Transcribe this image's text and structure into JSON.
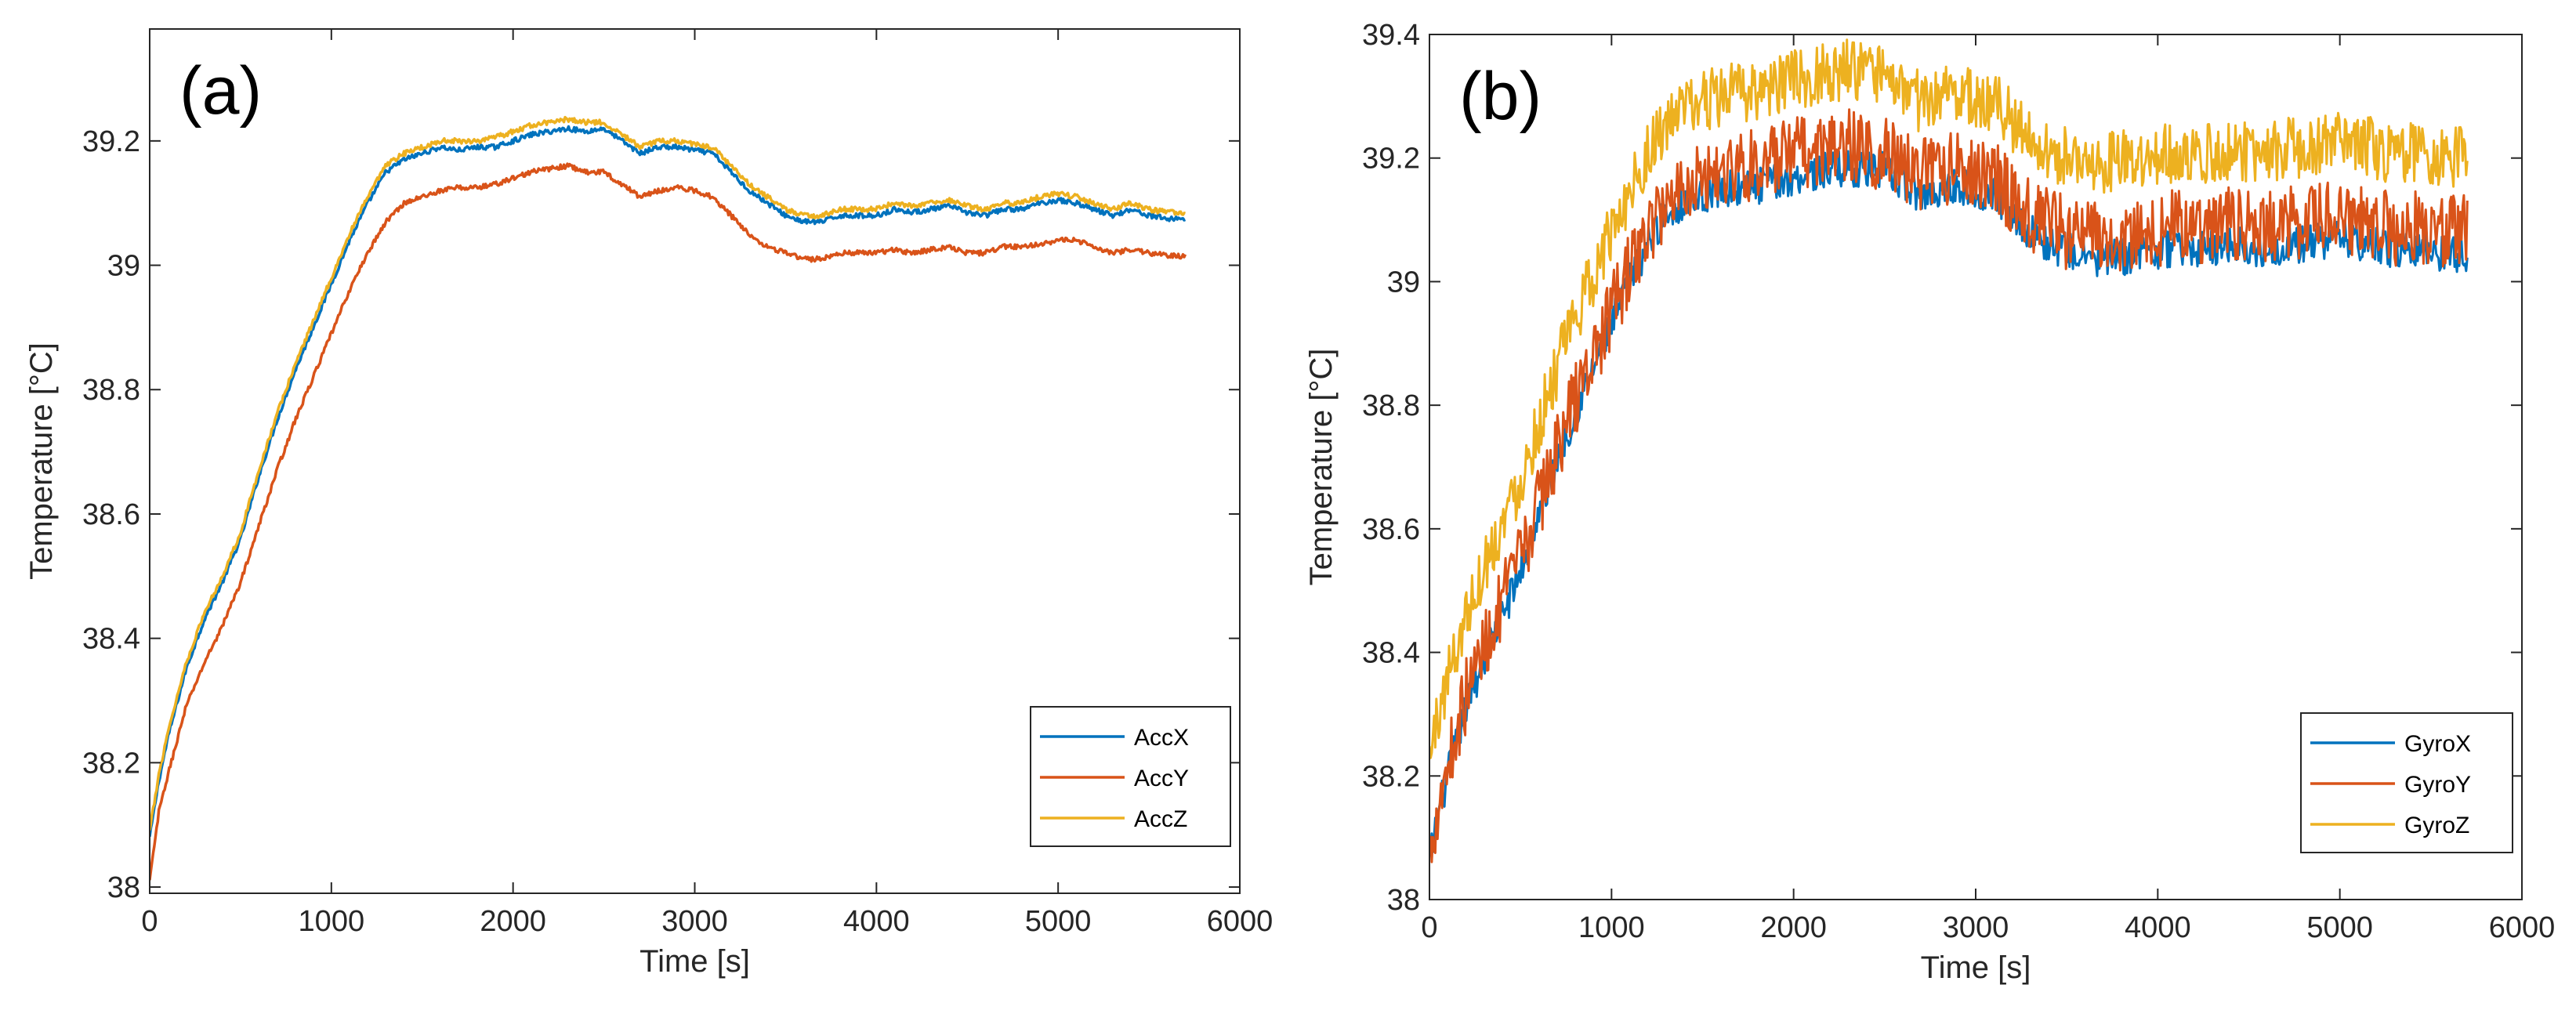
{
  "chart_data": [
    {
      "type": "line",
      "panel_label": "(a)",
      "xlabel": "Time [s]",
      "ylabel": "Temperature [°C]",
      "xlim": [
        0,
        6000
      ],
      "ylim": [
        37.99,
        39.38
      ],
      "xticks": [
        0,
        1000,
        2000,
        3000,
        4000,
        5000,
        6000
      ],
      "yticks": [
        38,
        38.2,
        38.4,
        38.6,
        38.8,
        39,
        39.2
      ],
      "ytick_labels": [
        "38",
        "38.2",
        "38.4",
        "38.6",
        "38.8",
        "39",
        "39.2"
      ],
      "legend_position": "bottom-right",
      "grid": false,
      "series": [
        {
          "name": "AccX",
          "color": "#0072BD",
          "noise": 0.004,
          "x": [
            0,
            50,
            100,
            200,
            300,
            400,
            500,
            600,
            700,
            800,
            900,
            1000,
            1100,
            1200,
            1300,
            1400,
            1500,
            1600,
            1700,
            1800,
            1900,
            2000,
            2100,
            2200,
            2300,
            2400,
            2500,
            2600,
            2700,
            2800,
            2900,
            3000,
            3100,
            3200,
            3300,
            3400,
            3500,
            3600,
            3700,
            3800,
            3900,
            4000,
            4100,
            4200,
            4300,
            4400,
            4500,
            4600,
            4700,
            4800,
            4900,
            5000,
            5100,
            5200,
            5300,
            5400,
            5500,
            5600,
            5700
          ],
          "y": [
            38.08,
            38.17,
            38.24,
            38.35,
            38.43,
            38.49,
            38.56,
            38.66,
            38.75,
            38.83,
            38.9,
            38.97,
            39.04,
            39.1,
            39.15,
            39.17,
            39.18,
            39.19,
            39.185,
            39.19,
            39.19,
            39.2,
            39.21,
            39.215,
            39.22,
            39.215,
            39.22,
            39.2,
            39.18,
            39.19,
            39.19,
            39.185,
            39.18,
            39.15,
            39.12,
            39.1,
            39.08,
            39.07,
            39.07,
            39.08,
            39.08,
            39.08,
            39.09,
            39.085,
            39.09,
            39.095,
            39.085,
            39.08,
            39.09,
            39.09,
            39.1,
            39.105,
            39.1,
            39.09,
            39.08,
            39.09,
            39.08,
            39.075,
            39.075
          ]
        },
        {
          "name": "AccY",
          "color": "#D95319",
          "noise": 0.004,
          "x": [
            0,
            50,
            100,
            200,
            300,
            400,
            500,
            600,
            700,
            800,
            900,
            1000,
            1100,
            1200,
            1300,
            1400,
            1500,
            1600,
            1700,
            1800,
            1900,
            2000,
            2100,
            2200,
            2300,
            2400,
            2500,
            2600,
            2700,
            2800,
            2900,
            3000,
            3100,
            3200,
            3300,
            3400,
            3500,
            3600,
            3700,
            3800,
            3900,
            4000,
            4100,
            4200,
            4300,
            4400,
            4500,
            4600,
            4700,
            4800,
            4900,
            5000,
            5100,
            5200,
            5300,
            5400,
            5500,
            5600,
            5700
          ],
          "y": [
            38.01,
            38.12,
            38.18,
            38.29,
            38.36,
            38.42,
            38.49,
            38.58,
            38.67,
            38.75,
            38.82,
            38.89,
            38.96,
            39.02,
            39.07,
            39.1,
            39.11,
            39.12,
            39.125,
            39.125,
            39.13,
            39.14,
            39.15,
            39.155,
            39.16,
            39.15,
            39.15,
            39.13,
            39.11,
            39.12,
            39.125,
            39.12,
            39.11,
            39.08,
            39.05,
            39.03,
            39.02,
            39.01,
            39.01,
            39.02,
            39.02,
            39.02,
            39.025,
            39.02,
            39.025,
            39.03,
            39.02,
            39.02,
            39.03,
            39.03,
            39.035,
            39.04,
            39.04,
            39.03,
            39.02,
            39.025,
            39.02,
            39.015,
            39.015
          ]
        },
        {
          "name": "AccZ",
          "color": "#EDB120",
          "noise": 0.004,
          "x": [
            0,
            50,
            100,
            200,
            300,
            400,
            500,
            600,
            700,
            800,
            900,
            1000,
            1100,
            1200,
            1300,
            1400,
            1500,
            1600,
            1700,
            1800,
            1900,
            2000,
            2100,
            2200,
            2300,
            2400,
            2500,
            2600,
            2700,
            2800,
            2900,
            3000,
            3100,
            3200,
            3300,
            3400,
            3500,
            3600,
            3700,
            3800,
            3900,
            4000,
            4100,
            4200,
            4300,
            4400,
            4500,
            4600,
            4700,
            4800,
            4900,
            5000,
            5100,
            5200,
            5300,
            5400,
            5500,
            5600,
            5700
          ],
          "y": [
            38.09,
            38.18,
            38.25,
            38.36,
            38.44,
            38.5,
            38.57,
            38.67,
            38.76,
            38.84,
            38.91,
            38.98,
            39.05,
            39.11,
            39.16,
            39.18,
            39.19,
            39.2,
            39.2,
            39.2,
            39.205,
            39.215,
            39.225,
            39.23,
            39.235,
            39.23,
            39.23,
            39.21,
            39.19,
            39.2,
            39.2,
            39.195,
            39.19,
            39.16,
            39.13,
            39.11,
            39.09,
            39.08,
            39.08,
            39.09,
            39.09,
            39.09,
            39.1,
            39.095,
            39.1,
            39.105,
            39.095,
            39.09,
            39.1,
            39.1,
            39.11,
            39.115,
            39.11,
            39.1,
            39.09,
            39.1,
            39.09,
            39.085,
            39.085
          ]
        }
      ]
    },
    {
      "type": "line",
      "panel_label": "(b)",
      "xlabel": "Time [s]",
      "ylabel": "Temperature [°C]",
      "xlim": [
        0,
        6000
      ],
      "ylim": [
        38,
        39.4
      ],
      "xticks": [
        0,
        1000,
        2000,
        3000,
        4000,
        5000,
        6000
      ],
      "yticks": [
        38,
        38.2,
        38.4,
        38.6,
        38.8,
        39,
        39.2,
        39.4
      ],
      "ytick_labels": [
        "38",
        "38.2",
        "38.4",
        "38.6",
        "38.8",
        "39",
        "39.2",
        "39.4"
      ],
      "legend_position": "bottom-right",
      "grid": false,
      "series": [
        {
          "name": "GyroX",
          "color": "#0072BD",
          "noise": 0.03,
          "x": [
            0,
            50,
            100,
            200,
            300,
            400,
            500,
            600,
            700,
            800,
            900,
            1000,
            1100,
            1200,
            1300,
            1400,
            1500,
            1600,
            1700,
            1800,
            1900,
            2000,
            2100,
            2200,
            2300,
            2400,
            2500,
            2600,
            2700,
            2800,
            2900,
            3000,
            3100,
            3200,
            3300,
            3400,
            3500,
            3600,
            3700,
            3800,
            3900,
            4000,
            4100,
            4200,
            4300,
            4400,
            4500,
            4600,
            4700,
            4800,
            4900,
            5000,
            5100,
            5200,
            5300,
            5400,
            5500,
            5600,
            5700
          ],
          "y": [
            38.06,
            38.14,
            38.2,
            38.31,
            38.39,
            38.46,
            38.53,
            38.62,
            38.71,
            38.79,
            38.86,
            38.93,
            39.0,
            39.06,
            39.11,
            39.13,
            39.14,
            39.15,
            39.15,
            39.155,
            39.16,
            39.17,
            39.175,
            39.18,
            39.185,
            39.18,
            39.18,
            39.16,
            39.14,
            39.15,
            39.155,
            39.15,
            39.14,
            39.11,
            39.08,
            39.06,
            39.05,
            39.04,
            39.035,
            39.04,
            39.045,
            39.05,
            39.055,
            39.05,
            39.055,
            39.06,
            39.055,
            39.05,
            39.06,
            39.06,
            39.065,
            39.07,
            39.065,
            39.06,
            39.05,
            39.055,
            39.05,
            39.045,
            39.045
          ]
        },
        {
          "name": "GyroY",
          "color": "#D95319",
          "noise": 0.06,
          "x": [
            0,
            50,
            100,
            200,
            300,
            400,
            500,
            600,
            700,
            800,
            900,
            1000,
            1100,
            1200,
            1300,
            1400,
            1500,
            1600,
            1700,
            1800,
            1900,
            2000,
            2100,
            2200,
            2300,
            2400,
            2500,
            2600,
            2700,
            2800,
            2900,
            3000,
            3100,
            3200,
            3300,
            3400,
            3500,
            3600,
            3700,
            3800,
            3900,
            4000,
            4100,
            4200,
            4300,
            4400,
            4500,
            4600,
            4700,
            4800,
            4900,
            5000,
            5100,
            5200,
            5300,
            5400,
            5500,
            5600,
            5700
          ],
          "y": [
            38.08,
            38.16,
            38.22,
            38.33,
            38.41,
            38.48,
            38.55,
            38.64,
            38.73,
            38.81,
            38.88,
            38.95,
            39.02,
            39.08,
            39.13,
            39.16,
            39.17,
            39.18,
            39.185,
            39.19,
            39.195,
            39.205,
            39.21,
            39.215,
            39.22,
            39.21,
            39.21,
            39.19,
            39.17,
            39.18,
            39.185,
            39.18,
            39.17,
            39.14,
            39.11,
            39.09,
            39.08,
            39.075,
            39.07,
            39.075,
            39.08,
            39.085,
            39.09,
            39.085,
            39.09,
            39.095,
            39.09,
            39.085,
            39.095,
            39.095,
            39.1,
            39.105,
            39.1,
            39.095,
            39.085,
            39.09,
            39.085,
            39.08,
            39.08
          ]
        },
        {
          "name": "GyroZ",
          "color": "#EDB120",
          "noise": 0.05,
          "x": [
            0,
            50,
            100,
            200,
            300,
            400,
            500,
            600,
            700,
            800,
            900,
            1000,
            1100,
            1200,
            1300,
            1400,
            1500,
            1600,
            1700,
            1800,
            1900,
            2000,
            2100,
            2200,
            2300,
            2400,
            2500,
            2600,
            2700,
            2800,
            2900,
            3000,
            3100,
            3200,
            3300,
            3400,
            3500,
            3600,
            3700,
            3800,
            3900,
            4000,
            4100,
            4200,
            4300,
            4400,
            4500,
            4600,
            4700,
            4800,
            4900,
            5000,
            5100,
            5200,
            5300,
            5400,
            5500,
            5600,
            5700
          ],
          "y": [
            38.23,
            38.3,
            38.36,
            38.46,
            38.54,
            38.61,
            38.68,
            38.77,
            38.86,
            38.94,
            39.01,
            39.08,
            39.15,
            39.21,
            39.25,
            39.28,
            39.29,
            39.3,
            39.305,
            39.31,
            39.315,
            39.325,
            39.335,
            39.34,
            39.345,
            39.335,
            39.33,
            39.31,
            39.29,
            39.3,
            39.305,
            39.3,
            39.29,
            39.26,
            39.23,
            39.21,
            39.2,
            39.195,
            39.19,
            39.195,
            39.2,
            39.205,
            39.21,
            39.205,
            39.21,
            39.215,
            39.21,
            39.205,
            39.215,
            39.215,
            39.22,
            39.225,
            39.22,
            39.215,
            39.205,
            39.21,
            39.205,
            39.2,
            39.2
          ]
        }
      ]
    }
  ]
}
